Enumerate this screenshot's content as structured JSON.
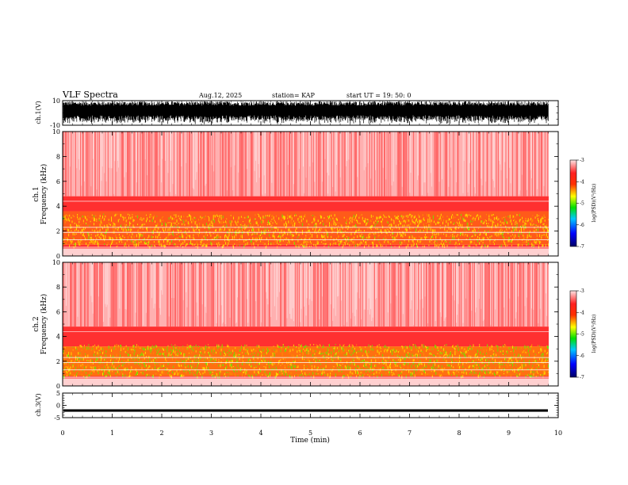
{
  "header": {
    "title": "VLF Spectra",
    "date": "Aug.12, 2025",
    "station": "station= KAP",
    "start": "start  UT  =   19: 50: 0"
  },
  "chart_data": [
    {
      "type": "line",
      "id": "ch1-waveform",
      "ylabel": "ch.1(V)",
      "ylim": [
        -10,
        10
      ],
      "yticks": [
        "10",
        "-10"
      ],
      "xlim": [
        0,
        10
      ],
      "description_values": "dense high-amplitude waveform spanning roughly -9 to +9 V"
    },
    {
      "type": "heatmap",
      "id": "ch1-spectrogram",
      "ylabel": "ch.1\nFrequency  (kHz)",
      "ylabel_lines": [
        "ch.1",
        "Frequency  (kHz)"
      ],
      "ylim": [
        0,
        10
      ],
      "yticks": [
        "0",
        "2",
        "4",
        "6",
        "8",
        "10"
      ],
      "xlim": [
        0,
        10
      ],
      "colorbar": {
        "label": "log(PSD)(V²/Hz)",
        "range": [
          -7,
          -3
        ],
        "ticks": [
          "-3",
          "-4",
          "-5",
          "-6",
          "-7"
        ]
      }
    },
    {
      "type": "heatmap",
      "id": "ch2-spectrogram",
      "ylabel": "ch.2\nFrequency  (kHz)",
      "ylabel_lines": [
        "ch.2",
        "Frequency  (kHz)"
      ],
      "ylim": [
        0,
        10
      ],
      "yticks": [
        "0",
        "2",
        "4",
        "6",
        "8",
        "10"
      ],
      "xlim": [
        0,
        10
      ],
      "colorbar": {
        "label": "log(PSD)(V²/Hz)",
        "range": [
          -7,
          -3
        ],
        "ticks": [
          "-3",
          "-4",
          "-5",
          "-6",
          "-7"
        ]
      }
    },
    {
      "type": "line",
      "id": "ch3-waveform",
      "ylabel": "ch.3(V)",
      "ylim": [
        -5,
        5
      ],
      "yticks": [
        "5",
        "0",
        "-5"
      ],
      "xlim": [
        0,
        10
      ],
      "description_values": "near-constant signal around -2 V"
    }
  ],
  "xaxis": {
    "label": "Time  (min)",
    "ticks": [
      "0",
      "1",
      "2",
      "3",
      "4",
      "5",
      "6",
      "7",
      "8",
      "9",
      "10"
    ]
  },
  "colors": {
    "red": "#ff2a2a",
    "pink": "#ff9b9b",
    "orange": "#ff8c00",
    "yellow": "#ffd800",
    "green": "#7bd800",
    "axis": "#000000"
  }
}
